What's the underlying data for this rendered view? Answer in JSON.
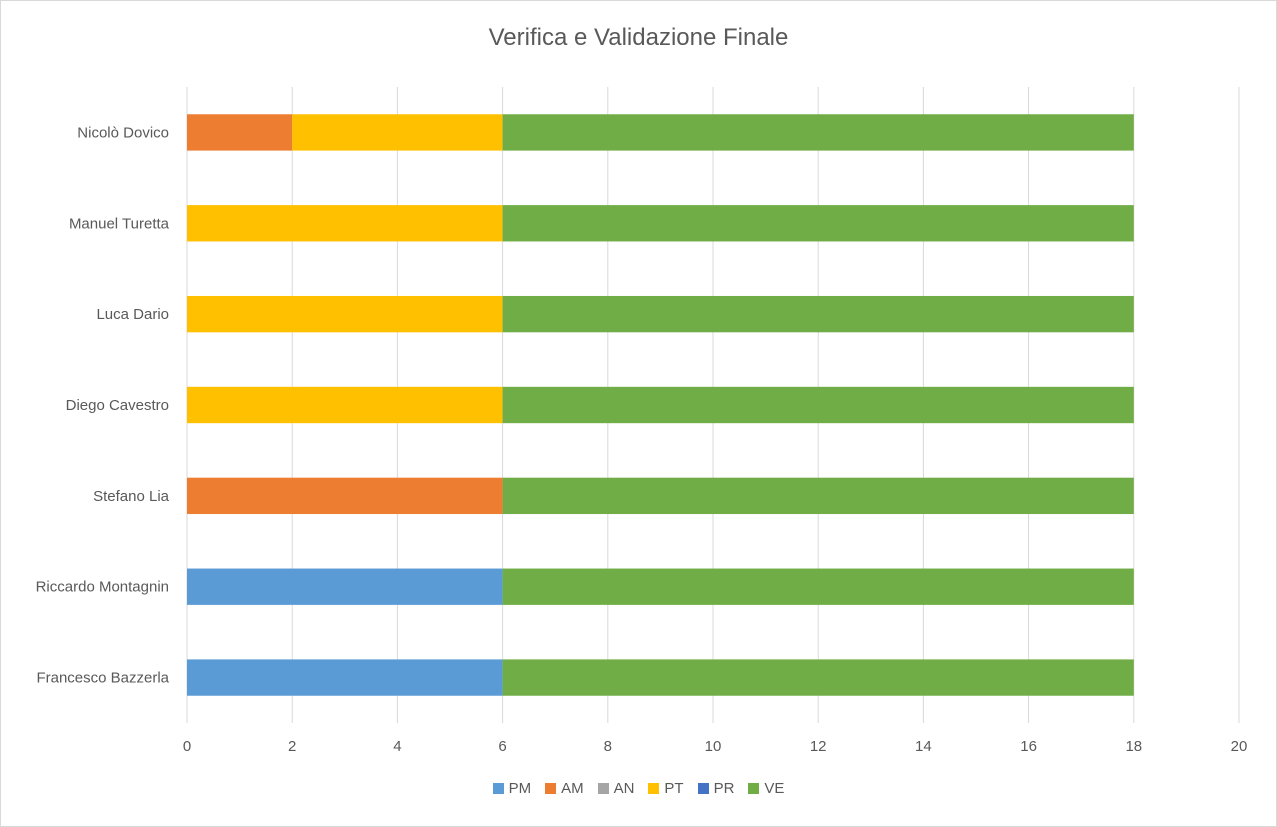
{
  "chart_data": {
    "type": "bar",
    "orientation": "horizontal",
    "stacked": true,
    "title": "Verifica e Validazione Finale",
    "xlabel": "",
    "ylabel": "",
    "xlim": [
      0,
      20
    ],
    "x_ticks": [
      "0",
      "2",
      "4",
      "6",
      "8",
      "10",
      "12",
      "14",
      "16",
      "18",
      "20"
    ],
    "grid": "vertical",
    "legend_position": "bottom",
    "categories": [
      "Francesco Bazzerla",
      "Riccardo Montagnin",
      "Stefano Lia",
      "Diego Cavestro",
      "Luca Dario",
      "Manuel Turetta",
      "Nicolò Dovico"
    ],
    "series": [
      {
        "name": "PM",
        "color": "#5b9bd5",
        "values": [
          6,
          6,
          0,
          0,
          0,
          0,
          0
        ]
      },
      {
        "name": "AM",
        "color": "#ed7d31",
        "values": [
          0,
          0,
          6,
          0,
          0,
          0,
          2
        ]
      },
      {
        "name": "AN",
        "color": "#a5a5a5",
        "values": [
          0,
          0,
          0,
          0,
          0,
          0,
          0
        ]
      },
      {
        "name": "PT",
        "color": "#ffc000",
        "values": [
          0,
          0,
          0,
          6,
          6,
          6,
          4
        ]
      },
      {
        "name": "PR",
        "color": "#4472c4",
        "values": [
          0,
          0,
          0,
          0,
          0,
          0,
          0
        ]
      },
      {
        "name": "VE",
        "color": "#70ad47",
        "values": [
          12,
          12,
          12,
          12,
          12,
          12,
          12
        ]
      }
    ]
  }
}
